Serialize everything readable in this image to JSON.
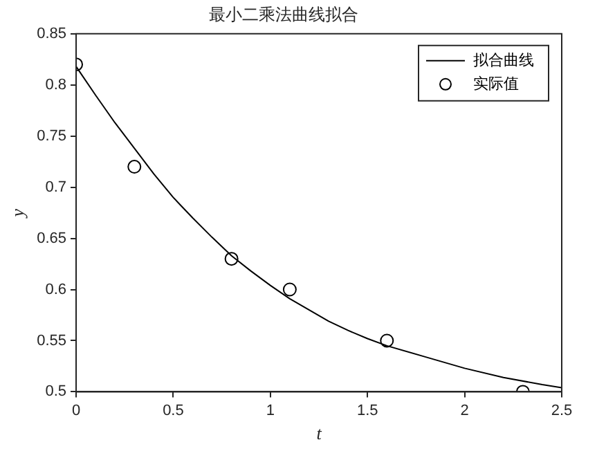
{
  "chart_data": {
    "type": "line",
    "title": "最小二乘法曲线拟合",
    "xlabel": "t",
    "ylabel": "y",
    "xlim": [
      0,
      2.5
    ],
    "xticks": [
      0,
      0.5,
      1,
      1.5,
      2,
      2.5
    ],
    "ylim": [
      0.5,
      0.85
    ],
    "yticks": [
      0.5,
      0.55,
      0.6,
      0.65,
      0.7,
      0.75,
      0.8,
      0.85
    ],
    "grid": false,
    "legend": "top right",
    "series": [
      {
        "name": "拟合曲线",
        "color": "#000000",
        "marker": "none",
        "line_style": "solid",
        "x": [
          0,
          0.1,
          0.2,
          0.3,
          0.4,
          0.5,
          0.6,
          0.7,
          0.8,
          0.9,
          1.0,
          1.1,
          1.2,
          1.3,
          1.4,
          1.5,
          1.6,
          1.8,
          2.0,
          2.2,
          2.4,
          2.5
        ],
        "values": [
          0.818,
          0.79,
          0.763,
          0.738,
          0.713,
          0.69,
          0.67,
          0.651,
          0.633,
          0.618,
          0.604,
          0.591,
          0.58,
          0.569,
          0.56,
          0.552,
          0.545,
          0.534,
          0.523,
          0.514,
          0.507,
          0.504
        ]
      },
      {
        "name": "实际值",
        "type": "scatter",
        "color": "#000000",
        "marker": "circle",
        "x": [
          0,
          0.3,
          0.8,
          1.1,
          1.6,
          2.3
        ],
        "values": [
          0.82,
          0.72,
          0.63,
          0.6,
          0.55,
          0.5
        ]
      }
    ]
  }
}
